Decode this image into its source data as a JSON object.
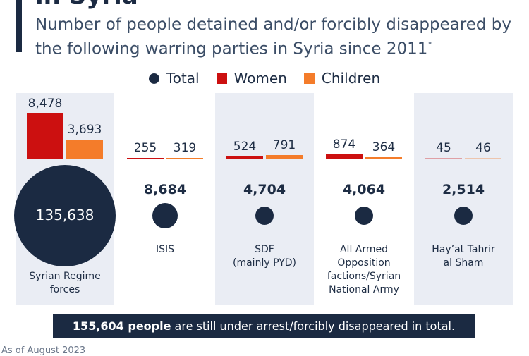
{
  "header": {
    "title_fragment": "in Syria",
    "subtitle": "Number of people detained and/or forcibly disappeared by the following warring parties in Syria since 2011",
    "subtitle_mark": "*"
  },
  "legend": {
    "total": "Total",
    "women": "Women",
    "children": "Children"
  },
  "colors": {
    "total": "#1b2a42",
    "women": "#cc1010",
    "children": "#f47c2a"
  },
  "chart_data": {
    "type": "bar",
    "title": "Number of people detained and/or forcibly disappeared by the following warring parties in Syria since 2011",
    "categories": [
      "Syrian Regime forces",
      "ISIS",
      "SDF (mainly PYD)",
      "All Armed Opposition factions/Syrian National Army",
      "Hay’at Tahrir al Sham"
    ],
    "series": [
      {
        "name": "Total",
        "values": [
          135638,
          8684,
          4704,
          4064,
          2514
        ],
        "labels": [
          "135,638",
          "8,684",
          "4,704",
          "4,064",
          "2,514"
        ]
      },
      {
        "name": "Women",
        "values": [
          8478,
          255,
          524,
          874,
          45
        ],
        "labels": [
          "8,478",
          "255",
          "524",
          "874",
          "45"
        ]
      },
      {
        "name": "Children",
        "values": [
          3693,
          319,
          791,
          364,
          46
        ],
        "labels": [
          "3,693",
          "319",
          "791",
          "364",
          "46"
        ]
      }
    ],
    "party_labels": [
      [
        "Syrian Regime",
        "forces"
      ],
      [
        "ISIS"
      ],
      [
        "SDF",
        "(mainly PYD)"
      ],
      [
        "All Armed",
        "Opposition",
        "factions/Syrian",
        "National Army"
      ],
      [
        "Hay’at Tahrir",
        "al Sham"
      ]
    ]
  },
  "footer": {
    "banner_bold": "155,604 people",
    "banner_rest": " are still under arrest/forcibly disappeared in total.",
    "source_fragment": "As of August 2023"
  }
}
